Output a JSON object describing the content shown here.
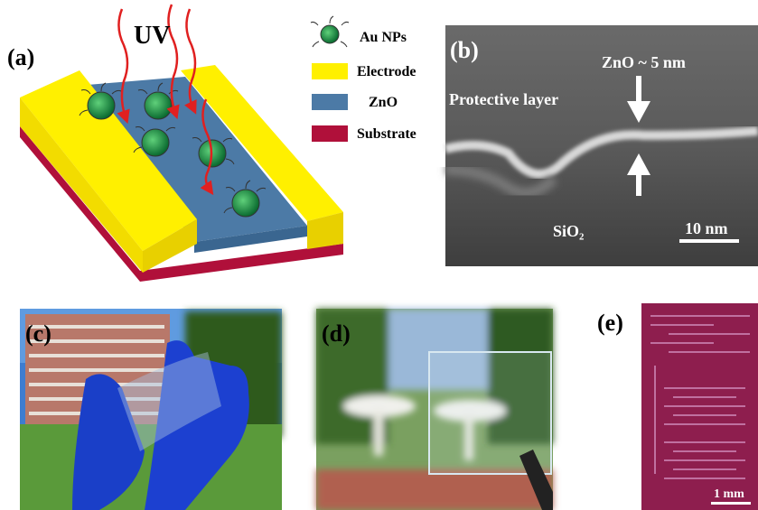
{
  "panels": {
    "a": {
      "label": "(a)",
      "uv": "UV",
      "legend": [
        "Au NPs",
        "Electrode",
        "ZnO",
        "Substrate"
      ]
    },
    "b": {
      "label": "(b)",
      "thickness": "ZnO ~ 5 nm",
      "layer": "Protective layer",
      "oxide": "SiO₂",
      "scale": "10 nm"
    },
    "c": {
      "label": "(c)"
    },
    "d": {
      "label": "(d)"
    },
    "e": {
      "label": "(e)",
      "scale": "1 mm"
    }
  }
}
